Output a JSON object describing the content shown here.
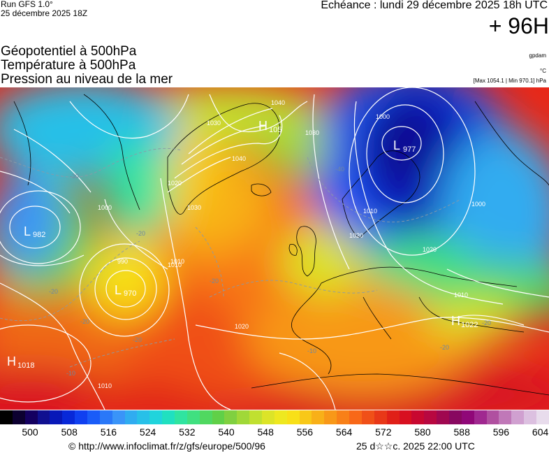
{
  "header": {
    "run_label": "Run GFS 1.0°",
    "run_date": "25 décembre 2025 18Z",
    "valid_time": "Echéance : lundi 29 décembre 2025 18h UTC",
    "lead_time": "+ 96H"
  },
  "titles": {
    "line1": "Géopotentiel à 500hPa",
    "line2": "Température à 500hPa",
    "line3": "Pression au niveau de la mer"
  },
  "units": {
    "geopotential": "gpdam",
    "temperature": "°C",
    "pressure": "[Max 1054.1 | Min 970.1] hPa"
  },
  "map_labels": {
    "lows": [
      {
        "letter": "L",
        "value": "982"
      },
      {
        "letter": "L",
        "value": "970"
      },
      {
        "letter": "L",
        "value": "977"
      }
    ],
    "highs": [
      {
        "letter": "H",
        "value": "1018"
      },
      {
        "letter": "H",
        "value": "105"
      },
      {
        "letter": "H",
        "value": "1022"
      }
    ],
    "isobars": [
      "1040",
      "1030",
      "1020",
      "1000",
      "990",
      "1010",
      "1030",
      "1040",
      "1000",
      "1010",
      "1020",
      "1010",
      "1000",
      "1020",
      "1020",
      "1010",
      "1030",
      "1010"
    ],
    "isotherms": [
      "-30",
      "-20",
      "-40",
      "-20",
      "-20",
      "-20",
      "-20",
      "-10",
      "-10",
      "-20",
      "-20"
    ]
  },
  "colorbar": {
    "tick_labels": [
      "500",
      "508",
      "516",
      "524",
      "532",
      "540",
      "548",
      "556",
      "564",
      "572",
      "580",
      "588",
      "596",
      "604"
    ],
    "colors": [
      "#000000",
      "#0c0030",
      "#140060",
      "#101090",
      "#0818b8",
      "#0828d8",
      "#1040f0",
      "#1a5cf8",
      "#2a78f8",
      "#3a94f8",
      "#30acf0",
      "#28c0e8",
      "#20d4dc",
      "#20e0c0",
      "#30e4a0",
      "#40e080",
      "#50d860",
      "#60d048",
      "#80d040",
      "#a0d838",
      "#c0e030",
      "#dce428",
      "#eee820",
      "#f8e018",
      "#f8c818",
      "#f8b018",
      "#f89818",
      "#f88018",
      "#f86818",
      "#f05018",
      "#e83818",
      "#e02018",
      "#d81020",
      "#c80830",
      "#b80840",
      "#a00850",
      "#880860",
      "#900878",
      "#a02890",
      "#b050a0",
      "#c078b8",
      "#d0a0d0",
      "#dcc0e0",
      "#e8dcec"
    ],
    "gradient_colors": [
      "#000000",
      "#101090",
      "#1040f0",
      "#3a94f8",
      "#20d4dc",
      "#40e080",
      "#80d040",
      "#dce428",
      "#f8c818",
      "#f88018",
      "#e83818",
      "#c80830",
      "#880860",
      "#b050a0",
      "#e8dcec"
    ]
  },
  "footer": {
    "source": "© http://www.infoclimat.fr/z/gfs/europe/500/96",
    "generated": "25 d☆☆c. 2025 22:00 UTC"
  }
}
